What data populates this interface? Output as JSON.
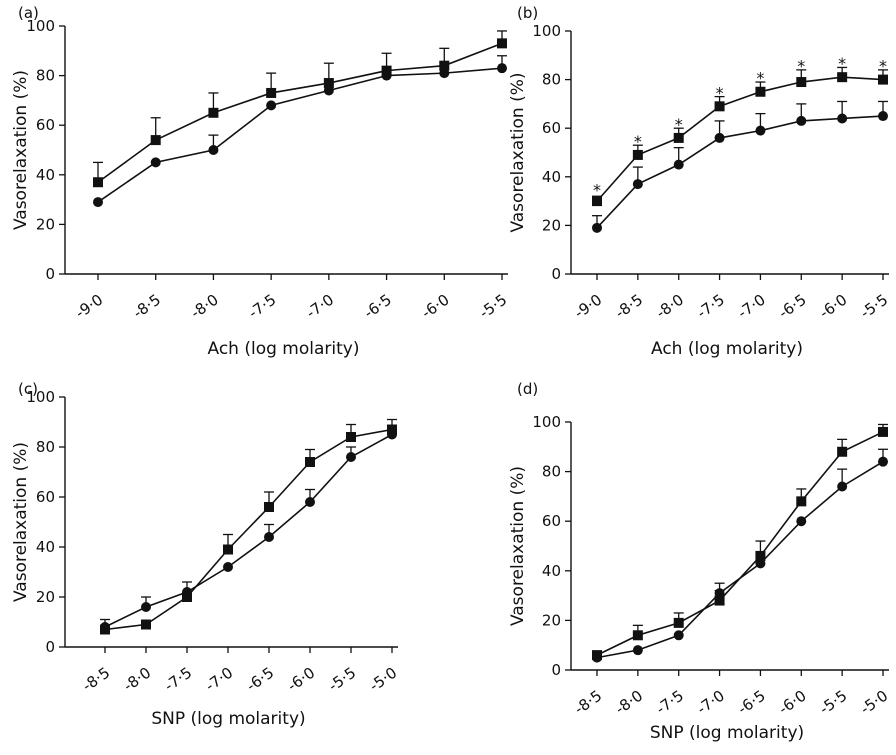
{
  "chart_data": [
    {
      "type": "line",
      "panel_label": "(a)",
      "xlabel": "Ach (log molarity)",
      "ylabel": "Vasorelaxation (%)",
      "x_ticks": [
        "-9·0",
        "-8·5",
        "-8·0",
        "-7·5",
        "-7·0",
        "-6·5",
        "-6·0",
        "-5·5"
      ],
      "x": [
        -9.0,
        -8.5,
        -8.0,
        -7.5,
        -7.0,
        -6.5,
        -6.0,
        -5.5
      ],
      "xlim": [
        -9.0,
        -5.5
      ],
      "y_ticks": [
        "0",
        "20",
        "40",
        "60",
        "80",
        "100"
      ],
      "ylim": [
        0,
        100
      ],
      "grid": false,
      "series": [
        {
          "marker": "square",
          "values": [
            37,
            54,
            65,
            73,
            77,
            82,
            84,
            93
          ],
          "errors": [
            8,
            9,
            8,
            8,
            8,
            7,
            7,
            5
          ]
        },
        {
          "marker": "circle",
          "values": [
            29,
            45,
            50,
            68,
            74,
            80,
            81,
            83
          ],
          "errors": [
            0,
            0,
            6,
            0,
            0,
            0,
            0,
            5
          ]
        }
      ],
      "annotations": []
    },
    {
      "type": "line",
      "panel_label": "(b)",
      "xlabel": "Ach (log molarity)",
      "ylabel": "Vasorelaxation (%)",
      "x_ticks": [
        "-9·0",
        "-8·5",
        "-8·0",
        "-7·5",
        "-7·0",
        "-6·5",
        "-6·0",
        "-5·5"
      ],
      "x": [
        -9.0,
        -8.5,
        -8.0,
        -7.5,
        -7.0,
        -6.5,
        -6.0,
        -5.5
      ],
      "xlim": [
        -9.0,
        -5.5
      ],
      "y_ticks": [
        "0",
        "20",
        "40",
        "60",
        "80",
        "100"
      ],
      "ylim": [
        0,
        100
      ],
      "grid": false,
      "series": [
        {
          "marker": "square",
          "values": [
            30,
            49,
            56,
            69,
            75,
            79,
            81,
            80
          ],
          "errors": [
            2,
            4,
            4,
            4,
            4,
            5,
            4,
            4
          ]
        },
        {
          "marker": "circle",
          "values": [
            19,
            37,
            45,
            56,
            59,
            63,
            64,
            65
          ],
          "errors": [
            5,
            7,
            7,
            7,
            7,
            7,
            7,
            6
          ]
        }
      ],
      "annotations": [
        {
          "text": "*",
          "x": -9.0,
          "y": 36
        },
        {
          "text": "*",
          "x": -8.5,
          "y": 56
        },
        {
          "text": "*",
          "x": -8.0,
          "y": 63
        },
        {
          "text": "*",
          "x": -7.5,
          "y": 76
        },
        {
          "text": "*",
          "x": -7.0,
          "y": 82
        },
        {
          "text": "*",
          "x": -6.5,
          "y": 87
        },
        {
          "text": "*",
          "x": -6.0,
          "y": 88
        },
        {
          "text": "*",
          "x": -5.5,
          "y": 87
        }
      ]
    },
    {
      "type": "line",
      "panel_label": "(c)",
      "xlabel": "SNP (log molarity)",
      "ylabel": "Vasorelaxation (%)",
      "x_ticks": [
        "-8·5",
        "-8·0",
        "-7·5",
        "-7·0",
        "-6·5",
        "-6·0",
        "-5·5",
        "-5·0"
      ],
      "x": [
        -8.5,
        -8.0,
        -7.5,
        -7.0,
        -6.5,
        -6.0,
        -5.5,
        -5.0
      ],
      "xlim": [
        -8.5,
        -5.0
      ],
      "y_ticks": [
        "0",
        "20",
        "40",
        "60",
        "80",
        "100"
      ],
      "ylim": [
        0,
        100
      ],
      "grid": false,
      "series": [
        {
          "marker": "square",
          "values": [
            7,
            9,
            20,
            39,
            56,
            74,
            84,
            87
          ],
          "errors": [
            4,
            0,
            6,
            6,
            6,
            5,
            5,
            4
          ]
        },
        {
          "marker": "circle",
          "values": [
            8,
            16,
            22,
            32,
            44,
            58,
            76,
            85
          ],
          "errors": [
            0,
            4,
            0,
            0,
            5,
            5,
            4,
            0
          ]
        }
      ],
      "annotations": []
    },
    {
      "type": "line",
      "panel_label": "(d)",
      "xlabel": "SNP (log molarity)",
      "ylabel": "Vasorelaxation (%)",
      "x_ticks": [
        "-8·5",
        "-8·0",
        "-7·5",
        "-7·0",
        "-6·5",
        "-6·0",
        "-5·5",
        "-5·0"
      ],
      "x": [
        -8.5,
        -8.0,
        -7.5,
        -7.0,
        -6.5,
        -6.0,
        -5.5,
        -5.0
      ],
      "xlim": [
        -8.5,
        -5.0
      ],
      "y_ticks": [
        "0",
        "20",
        "40",
        "60",
        "80",
        "100"
      ],
      "ylim": [
        0,
        100
      ],
      "grid": false,
      "series": [
        {
          "marker": "square",
          "values": [
            6,
            14,
            19,
            28,
            46,
            68,
            88,
            96
          ],
          "errors": [
            0,
            4,
            4,
            4,
            6,
            5,
            5,
            3
          ]
        },
        {
          "marker": "circle",
          "values": [
            5,
            8,
            14,
            31,
            43,
            60,
            74,
            84
          ],
          "errors": [
            0,
            0,
            0,
            4,
            0,
            0,
            7,
            5
          ]
        }
      ],
      "annotations": []
    }
  ]
}
